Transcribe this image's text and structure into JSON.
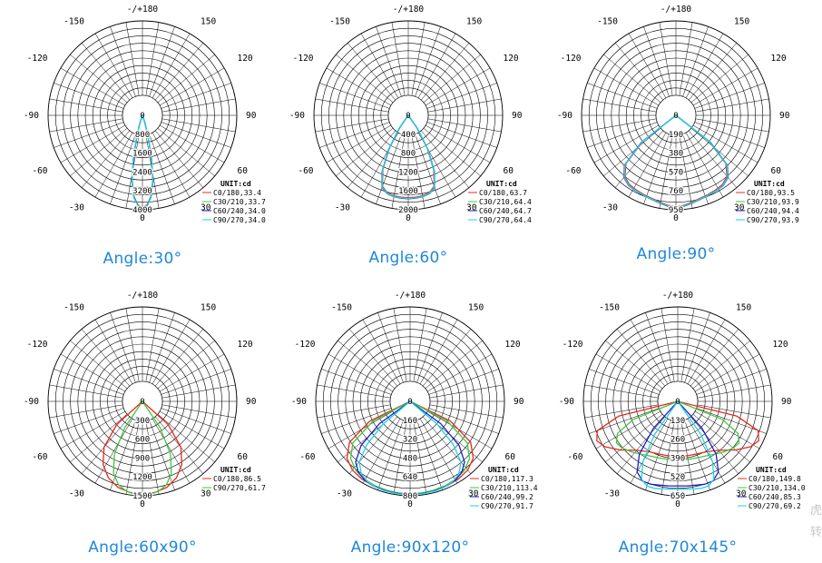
{
  "chart_data": [
    {
      "type": "polar",
      "caption": "Angle:30°",
      "unit": "UNIT:cd",
      "angle_labels": {
        "top": "-/+180",
        "bottom": "0",
        "l150": "-150",
        "r150": "150",
        "l120": "-120",
        "r120": "120",
        "l90": "-90",
        "r90": "90",
        "l60": "-60",
        "r60": "60",
        "l30": "-30",
        "r30": "30"
      },
      "rmax": 4000,
      "radial_ticks": [
        "0",
        "800",
        "1600",
        "2400",
        "3200",
        "4000"
      ],
      "series": [
        {
          "name": "C0/180,33.4",
          "color": "#e8281e",
          "angles": [
            -21,
            -18,
            -15,
            -12,
            -9,
            -6,
            -3,
            0,
            3,
            6,
            9,
            12,
            15,
            18,
            21
          ],
          "values": [
            0,
            300,
            900,
            1800,
            2800,
            3450,
            3800,
            3880,
            3800,
            3450,
            2800,
            1800,
            900,
            300,
            0
          ]
        },
        {
          "name": "C30/210,33.7",
          "color": "#3ec83e",
          "angles": [
            -21,
            -18,
            -15,
            -12,
            -9,
            -6,
            -3,
            0,
            3,
            6,
            9,
            12,
            15,
            18,
            21
          ],
          "values": [
            0,
            320,
            920,
            1820,
            2820,
            3470,
            3820,
            3900,
            3820,
            3470,
            2820,
            1820,
            920,
            320,
            0
          ]
        },
        {
          "name": "C60/240,34.0",
          "color": "#1e1ec8",
          "angles": [
            -21,
            -18,
            -15,
            -12,
            -9,
            -6,
            -3,
            0,
            3,
            6,
            9,
            12,
            15,
            18,
            21
          ],
          "values": [
            0,
            330,
            940,
            1840,
            2840,
            3480,
            3830,
            3920,
            3830,
            3480,
            2840,
            1840,
            940,
            330,
            0
          ]
        },
        {
          "name": "C90/270,34.0",
          "color": "#1ed2e6",
          "angles": [
            -21,
            -18,
            -15,
            -12,
            -9,
            -6,
            -3,
            0,
            3,
            6,
            9,
            12,
            15,
            18,
            21
          ],
          "values": [
            0,
            340,
            950,
            1860,
            2860,
            3500,
            3850,
            3940,
            3850,
            3500,
            2860,
            1860,
            950,
            340,
            0
          ]
        }
      ]
    },
    {
      "type": "polar",
      "caption": "Angle:60°",
      "unit": "UNIT:cd",
      "angle_labels": {
        "top": "-/+180",
        "bottom": "0",
        "l150": "-150",
        "r150": "150",
        "l120": "-120",
        "r120": "120",
        "l90": "-90",
        "r90": "90",
        "l60": "-60",
        "r60": "60",
        "l30": "-30",
        "r30": "30"
      },
      "rmax": 2000,
      "radial_ticks": [
        "0",
        "400",
        "800",
        "1200",
        "1600",
        "2000"
      ],
      "series": [
        {
          "name": "C0/180,63.7",
          "color": "#e8281e",
          "angles": [
            -40,
            -35,
            -30,
            -25,
            -20,
            -15,
            -10,
            -5,
            0,
            5,
            10,
            15,
            20,
            25,
            30,
            35,
            40
          ],
          "values": [
            0,
            300,
            800,
            1280,
            1600,
            1700,
            1730,
            1740,
            1745,
            1740,
            1730,
            1700,
            1600,
            1280,
            800,
            300,
            0
          ]
        },
        {
          "name": "C30/210,64.4",
          "color": "#3ec83e",
          "angles": [
            -40,
            -35,
            -30,
            -25,
            -20,
            -15,
            -10,
            -5,
            0,
            5,
            10,
            15,
            20,
            25,
            30,
            35,
            40
          ],
          "values": [
            0,
            320,
            830,
            1310,
            1620,
            1715,
            1745,
            1755,
            1760,
            1755,
            1745,
            1715,
            1620,
            1310,
            830,
            320,
            0
          ]
        },
        {
          "name": "C60/240,64.7",
          "color": "#1e1ec8",
          "angles": [
            -40,
            -35,
            -30,
            -25,
            -20,
            -15,
            -10,
            -5,
            0,
            5,
            10,
            15,
            20,
            25,
            30,
            35,
            40
          ],
          "values": [
            0,
            330,
            840,
            1320,
            1630,
            1720,
            1750,
            1760,
            1765,
            1760,
            1750,
            1720,
            1630,
            1320,
            840,
            330,
            0
          ]
        },
        {
          "name": "C90/270,64.4",
          "color": "#1ed2e6",
          "angles": [
            -40,
            -35,
            -30,
            -25,
            -20,
            -15,
            -10,
            -5,
            0,
            5,
            10,
            15,
            20,
            25,
            30,
            35,
            40
          ],
          "values": [
            0,
            320,
            830,
            1310,
            1620,
            1715,
            1745,
            1755,
            1760,
            1755,
            1745,
            1715,
            1620,
            1310,
            830,
            320,
            0
          ]
        }
      ]
    },
    {
      "type": "polar",
      "caption": "Angle:90°",
      "unit": "UNIT:cd",
      "angle_labels": {
        "top": "-/+180",
        "bottom": "0",
        "l150": "-150",
        "r150": "150",
        "l120": "-120",
        "r120": "120",
        "l90": "-90",
        "r90": "90",
        "l60": "-60",
        "r60": "60",
        "l30": "-30",
        "r30": "30"
      },
      "rmax": 950,
      "radial_ticks": [
        "0",
        "190",
        "380",
        "570",
        "760",
        "950"
      ],
      "series": [
        {
          "name": "C0/180,93.5",
          "color": "#e8281e",
          "angles": [
            -58,
            -52,
            -46,
            -40,
            -34,
            -28,
            -22,
            -16,
            -10,
            -5,
            0,
            5,
            10,
            16,
            22,
            28,
            34,
            40,
            46,
            52,
            58
          ],
          "values": [
            0,
            420,
            700,
            800,
            840,
            850,
            860,
            870,
            890,
            910,
            920,
            910,
            890,
            870,
            860,
            850,
            840,
            800,
            700,
            420,
            0
          ]
        },
        {
          "name": "C30/210,93.9",
          "color": "#3ec83e",
          "angles": [
            -58,
            -52,
            -46,
            -40,
            -34,
            -28,
            -22,
            -16,
            -10,
            -5,
            0,
            5,
            10,
            16,
            22,
            28,
            34,
            40,
            46,
            52,
            58
          ],
          "values": [
            0,
            430,
            715,
            810,
            850,
            858,
            868,
            878,
            898,
            915,
            925,
            915,
            898,
            878,
            868,
            858,
            850,
            810,
            715,
            430,
            0
          ]
        },
        {
          "name": "C60/240,94.4",
          "color": "#1e1ec8",
          "angles": [
            -58,
            -52,
            -46,
            -40,
            -34,
            -28,
            -22,
            -16,
            -10,
            -5,
            0,
            5,
            10,
            16,
            22,
            28,
            34,
            40,
            46,
            52,
            58
          ],
          "values": [
            0,
            440,
            720,
            815,
            852,
            860,
            870,
            880,
            900,
            918,
            928,
            918,
            900,
            880,
            870,
            860,
            852,
            815,
            720,
            440,
            0
          ]
        },
        {
          "name": "C90/270,93.9",
          "color": "#1ed2e6",
          "angles": [
            -58,
            -52,
            -46,
            -40,
            -34,
            -28,
            -22,
            -16,
            -10,
            -5,
            0,
            5,
            10,
            16,
            22,
            28,
            34,
            40,
            46,
            52,
            58
          ],
          "values": [
            0,
            430,
            715,
            810,
            850,
            858,
            868,
            878,
            898,
            915,
            925,
            915,
            898,
            878,
            868,
            858,
            850,
            810,
            715,
            430,
            0
          ]
        }
      ]
    },
    {
      "type": "polar",
      "caption": "Angle:60x90°",
      "unit": "UNIT:cd",
      "angle_labels": {
        "top": "-/+180",
        "bottom": "0",
        "l150": "-150",
        "r150": "150",
        "l120": "-120",
        "r120": "120",
        "l90": "-90",
        "r90": "90",
        "l60": "-60",
        "r60": "60",
        "l30": "-30",
        "r30": "30"
      },
      "rmax": 1500,
      "radial_ticks": [
        "0",
        "300",
        "600",
        "900",
        "1200",
        "1500"
      ],
      "series": [
        {
          "name": "C0/180,86.5",
          "color": "#e8281e",
          "angles": [
            -55,
            -48,
            -40,
            -32,
            -24,
            -16,
            -8,
            0,
            8,
            16,
            24,
            32,
            40,
            48,
            55
          ],
          "values": [
            0,
            550,
            950,
            1180,
            1330,
            1420,
            1460,
            1480,
            1460,
            1420,
            1330,
            1180,
            950,
            550,
            0
          ]
        },
        {
          "name": "C90/270,61.7",
          "color": "#3ec83e",
          "angles": [
            -40,
            -34,
            -28,
            -22,
            -16,
            -10,
            -5,
            0,
            5,
            10,
            16,
            22,
            28,
            34,
            40
          ],
          "values": [
            0,
            500,
            950,
            1230,
            1380,
            1450,
            1480,
            1490,
            1480,
            1450,
            1380,
            1230,
            950,
            500,
            0
          ]
        }
      ]
    },
    {
      "type": "polar",
      "caption": "Angle:90x120°",
      "unit": "UNIT:cd",
      "angle_labels": {
        "top": "-/+180",
        "bottom": "0",
        "l150": "-150",
        "r150": "150",
        "l120": "-120",
        "r120": "120",
        "l90": "-90",
        "r90": "90",
        "l60": "-60",
        "r60": "60",
        "l30": "-30",
        "r30": "30"
      },
      "rmax": 800,
      "radial_ticks": [
        "0",
        "160",
        "320",
        "480",
        "640",
        "800"
      ],
      "series": [
        {
          "name": "C0/180,117.3",
          "color": "#e8281e",
          "angles": [
            -72,
            -64,
            -56,
            -48,
            -40,
            -32,
            -24,
            -16,
            -8,
            0,
            8,
            16,
            24,
            32,
            40,
            48,
            56,
            64,
            72
          ],
          "values": [
            0,
            380,
            620,
            720,
            760,
            775,
            780,
            782,
            784,
            785,
            784,
            782,
            780,
            775,
            760,
            720,
            620,
            380,
            0
          ]
        },
        {
          "name": "C30/210,113.4",
          "color": "#3ec83e",
          "angles": [
            -70,
            -62,
            -54,
            -46,
            -38,
            -30,
            -22,
            -14,
            -7,
            0,
            7,
            14,
            22,
            30,
            38,
            46,
            54,
            62,
            70
          ],
          "values": [
            0,
            360,
            600,
            700,
            745,
            765,
            775,
            780,
            782,
            783,
            782,
            780,
            775,
            765,
            745,
            700,
            600,
            360,
            0
          ]
        },
        {
          "name": "C60/240,99.2",
          "color": "#1e1ec8",
          "angles": [
            -60,
            -54,
            -48,
            -42,
            -36,
            -30,
            -24,
            -16,
            -8,
            0,
            8,
            16,
            24,
            30,
            36,
            42,
            48,
            54,
            60
          ],
          "values": [
            0,
            320,
            560,
            690,
            745,
            770,
            780,
            785,
            788,
            790,
            788,
            785,
            780,
            770,
            745,
            690,
            560,
            320,
            0
          ]
        },
        {
          "name": "C90/270,91.7",
          "color": "#1ed2e6",
          "angles": [
            -55,
            -50,
            -45,
            -40,
            -34,
            -28,
            -22,
            -16,
            -8,
            0,
            8,
            16,
            22,
            28,
            34,
            40,
            45,
            50,
            55
          ],
          "values": [
            0,
            300,
            520,
            670,
            740,
            770,
            782,
            788,
            791,
            792,
            791,
            788,
            782,
            770,
            740,
            670,
            520,
            300,
            0
          ]
        }
      ]
    },
    {
      "type": "polar",
      "caption": "Angle:70x145°",
      "unit": "UNIT:cd",
      "angle_labels": {
        "top": "-/+180",
        "bottom": "0",
        "l150": "-150",
        "r150": "150",
        "l120": "-120",
        "r120": "120",
        "l90": "-90",
        "r90": "90",
        "l60": "-60",
        "r60": "60",
        "l30": "-30",
        "r30": "30"
      },
      "rmax": 650,
      "radial_ticks": [
        "0",
        "130",
        "260",
        "390",
        "520",
        "650"
      ],
      "series": [
        {
          "name": "C0/180,149.8",
          "color": "#e8281e",
          "angles": [
            -82,
            -76,
            -70,
            -64,
            -58,
            -50,
            -40,
            -30,
            -20,
            -10,
            0,
            10,
            20,
            30,
            40,
            50,
            58,
            64,
            70,
            76,
            82
          ],
          "values": [
            0,
            420,
            590,
            620,
            590,
            520,
            440,
            400,
            385,
            380,
            378,
            380,
            385,
            400,
            440,
            520,
            590,
            620,
            590,
            420,
            0
          ]
        },
        {
          "name": "C30/210,134.0",
          "color": "#3ec83e",
          "angles": [
            -74,
            -68,
            -62,
            -56,
            -50,
            -42,
            -34,
            -26,
            -18,
            -9,
            0,
            9,
            18,
            26,
            34,
            42,
            50,
            56,
            62,
            68,
            74
          ],
          "values": [
            0,
            330,
            470,
            510,
            500,
            470,
            440,
            420,
            410,
            405,
            402,
            405,
            410,
            420,
            440,
            470,
            500,
            510,
            470,
            330,
            0
          ]
        },
        {
          "name": "C60/240,85.3",
          "color": "#1e1ec8",
          "angles": [
            -48,
            -42,
            -36,
            -30,
            -24,
            -18,
            -12,
            -6,
            0,
            6,
            12,
            18,
            24,
            30,
            36,
            42,
            48
          ],
          "values": [
            0,
            250,
            450,
            560,
            600,
            600,
            590,
            585,
            582,
            585,
            590,
            600,
            600,
            560,
            450,
            250,
            0
          ]
        },
        {
          "name": "C90/270,69.2",
          "color": "#1ed2e6",
          "angles": [
            -40,
            -35,
            -30,
            -25,
            -20,
            -15,
            -10,
            -5,
            0,
            5,
            10,
            15,
            20,
            25,
            30,
            35,
            40
          ],
          "values": [
            0,
            280,
            480,
            590,
            620,
            620,
            612,
            606,
            604,
            606,
            612,
            620,
            620,
            590,
            480,
            280,
            0
          ]
        }
      ]
    }
  ],
  "watermark": {
    "line1": "虎",
    "line2": "转"
  }
}
